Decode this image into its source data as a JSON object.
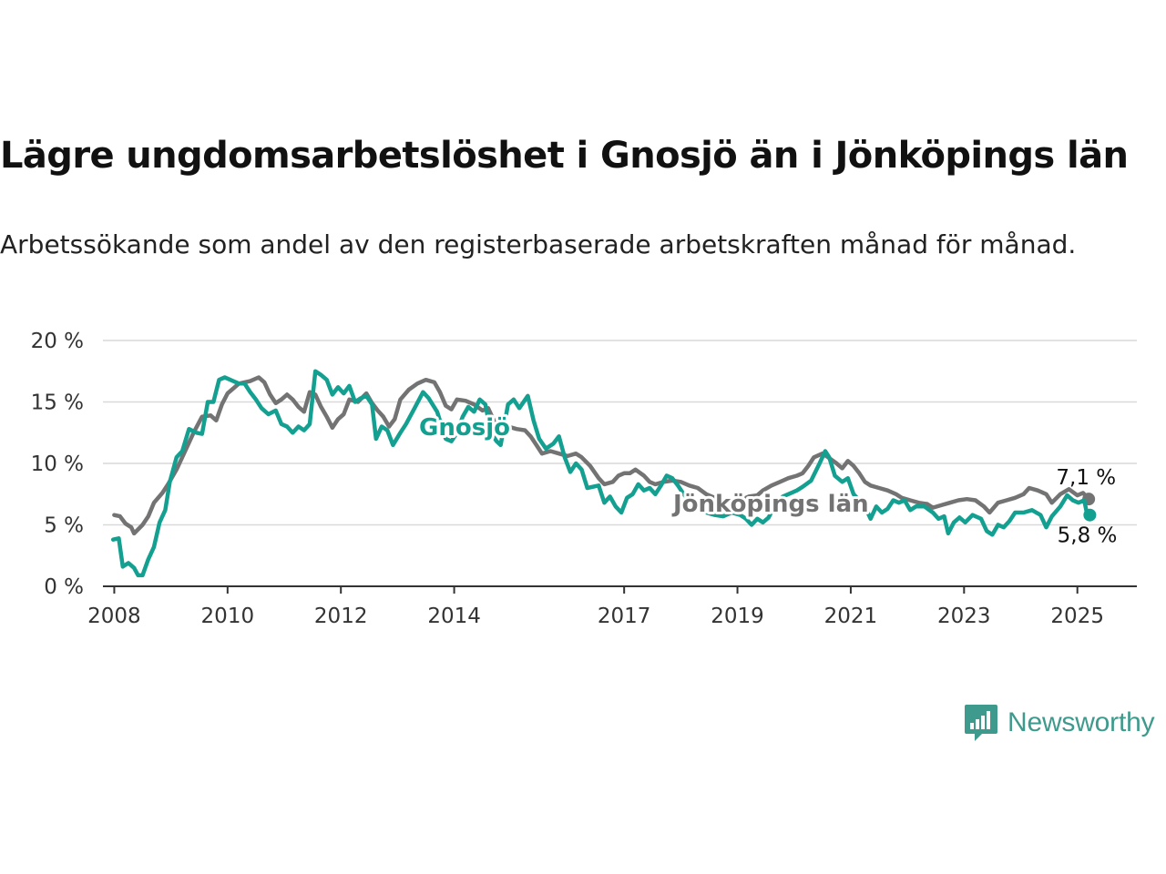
{
  "chart_data": {
    "type": "line",
    "title": "Lägre ungdomsarbetslöshet i Gnosjö än i Jönköpings län",
    "subtitle": "Arbetssökande som andel av den registerbaserade arbetskraften månad för månad.",
    "y_ticks": [
      "0 %",
      "5 %",
      "10 %",
      "15 %",
      "20 %"
    ],
    "ylim": [
      0,
      20
    ],
    "x_tick_labels": [
      "2008",
      "2010",
      "2012",
      "2014",
      "2017",
      "2019",
      "2021",
      "2023",
      "2025"
    ],
    "x_tick_years": [
      2008,
      2010,
      2012,
      2014,
      2017,
      2019,
      2021,
      2023,
      2025
    ],
    "xlim": [
      2007.8,
      2026.05
    ],
    "grid": true,
    "legend": "direct labels on lines",
    "series": [
      {
        "name": "Jönköpings län",
        "color": "#737373",
        "end_label": "7,1 %",
        "points": [
          [
            2008.0,
            5.8
          ],
          [
            2008.1,
            5.7
          ],
          [
            2008.2,
            5.1
          ],
          [
            2008.3,
            4.8
          ],
          [
            2008.35,
            4.3
          ],
          [
            2008.5,
            5.0
          ],
          [
            2008.6,
            5.7
          ],
          [
            2008.7,
            6.8
          ],
          [
            2008.85,
            7.6
          ],
          [
            2008.95,
            8.3
          ],
          [
            2009.1,
            9.5
          ],
          [
            2009.3,
            11.5
          ],
          [
            2009.4,
            12.5
          ],
          [
            2009.55,
            13.8
          ],
          [
            2009.7,
            13.9
          ],
          [
            2009.8,
            13.5
          ],
          [
            2009.9,
            14.8
          ],
          [
            2010.0,
            15.7
          ],
          [
            2010.2,
            16.5
          ],
          [
            2010.4,
            16.7
          ],
          [
            2010.55,
            17.0
          ],
          [
            2010.65,
            16.6
          ],
          [
            2010.75,
            15.6
          ],
          [
            2010.85,
            14.9
          ],
          [
            2010.95,
            15.2
          ],
          [
            2011.05,
            15.6
          ],
          [
            2011.15,
            15.2
          ],
          [
            2011.25,
            14.6
          ],
          [
            2011.35,
            14.2
          ],
          [
            2011.45,
            15.8
          ],
          [
            2011.55,
            15.6
          ],
          [
            2011.65,
            14.6
          ],
          [
            2011.75,
            13.8
          ],
          [
            2011.85,
            12.9
          ],
          [
            2011.95,
            13.6
          ],
          [
            2012.05,
            14.0
          ],
          [
            2012.15,
            15.2
          ],
          [
            2012.3,
            15.0
          ],
          [
            2012.45,
            15.7
          ],
          [
            2012.55,
            14.9
          ],
          [
            2012.65,
            14.3
          ],
          [
            2012.75,
            13.8
          ],
          [
            2012.85,
            13.0
          ],
          [
            2012.95,
            13.6
          ],
          [
            2013.05,
            15.2
          ],
          [
            2013.2,
            16.0
          ],
          [
            2013.35,
            16.5
          ],
          [
            2013.5,
            16.8
          ],
          [
            2013.65,
            16.6
          ],
          [
            2013.75,
            15.8
          ],
          [
            2013.85,
            14.7
          ],
          [
            2013.95,
            14.4
          ],
          [
            2014.05,
            15.2
          ],
          [
            2014.2,
            15.1
          ],
          [
            2014.35,
            14.8
          ],
          [
            2014.5,
            14.3
          ],
          [
            2014.6,
            14.5
          ],
          [
            2014.7,
            13.5
          ],
          [
            2014.8,
            13.0
          ],
          [
            2014.95,
            13.0
          ],
          [
            2015.1,
            12.8
          ],
          [
            2015.25,
            12.7
          ],
          [
            2015.35,
            12.2
          ],
          [
            2015.45,
            11.5
          ],
          [
            2015.55,
            10.8
          ],
          [
            2015.7,
            11.0
          ],
          [
            2015.85,
            10.8
          ],
          [
            2016.0,
            10.6
          ],
          [
            2016.15,
            10.8
          ],
          [
            2016.25,
            10.5
          ],
          [
            2016.4,
            9.8
          ],
          [
            2016.55,
            8.8
          ],
          [
            2016.65,
            8.3
          ],
          [
            2016.8,
            8.5
          ],
          [
            2016.9,
            9.0
          ],
          [
            2017.0,
            9.2
          ],
          [
            2017.1,
            9.2
          ],
          [
            2017.2,
            9.5
          ],
          [
            2017.35,
            9.0
          ],
          [
            2017.45,
            8.5
          ],
          [
            2017.55,
            8.3
          ],
          [
            2017.7,
            8.5
          ],
          [
            2017.85,
            8.6
          ],
          [
            2018.0,
            8.5
          ],
          [
            2018.15,
            8.2
          ],
          [
            2018.3,
            8.0
          ],
          [
            2018.45,
            7.5
          ],
          [
            2018.6,
            7.2
          ],
          [
            2018.75,
            7.0
          ],
          [
            2018.9,
            6.9
          ],
          [
            2019.05,
            7.0
          ],
          [
            2019.2,
            7.3
          ],
          [
            2019.35,
            7.4
          ],
          [
            2019.45,
            7.8
          ],
          [
            2019.6,
            8.2
          ],
          [
            2019.75,
            8.5
          ],
          [
            2019.9,
            8.8
          ],
          [
            2020.05,
            9.0
          ],
          [
            2020.15,
            9.2
          ],
          [
            2020.25,
            9.8
          ],
          [
            2020.35,
            10.5
          ],
          [
            2020.5,
            10.8
          ],
          [
            2020.6,
            10.5
          ],
          [
            2020.75,
            10.0
          ],
          [
            2020.85,
            9.6
          ],
          [
            2020.95,
            10.2
          ],
          [
            2021.05,
            9.8
          ],
          [
            2021.15,
            9.2
          ],
          [
            2021.25,
            8.5
          ],
          [
            2021.35,
            8.2
          ],
          [
            2021.5,
            8.0
          ],
          [
            2021.65,
            7.8
          ],
          [
            2021.8,
            7.5
          ],
          [
            2021.9,
            7.2
          ],
          [
            2022.05,
            7.0
          ],
          [
            2022.2,
            6.8
          ],
          [
            2022.35,
            6.7
          ],
          [
            2022.45,
            6.4
          ],
          [
            2022.6,
            6.6
          ],
          [
            2022.75,
            6.8
          ],
          [
            2022.9,
            7.0
          ],
          [
            2023.05,
            7.1
          ],
          [
            2023.2,
            7.0
          ],
          [
            2023.35,
            6.5
          ],
          [
            2023.45,
            6.0
          ],
          [
            2023.6,
            6.8
          ],
          [
            2023.75,
            7.0
          ],
          [
            2023.9,
            7.2
          ],
          [
            2024.05,
            7.5
          ],
          [
            2024.15,
            8.0
          ],
          [
            2024.3,
            7.8
          ],
          [
            2024.45,
            7.5
          ],
          [
            2024.55,
            6.8
          ],
          [
            2024.7,
            7.5
          ],
          [
            2024.85,
            7.9
          ],
          [
            2025.0,
            7.4
          ],
          [
            2025.1,
            7.6
          ],
          [
            2025.2,
            7.1
          ]
        ]
      },
      {
        "name": "Gnosjö",
        "color": "#14a091",
        "end_label": "5,8 %",
        "points": [
          [
            2007.98,
            3.8
          ],
          [
            2008.08,
            3.9
          ],
          [
            2008.15,
            1.6
          ],
          [
            2008.25,
            1.9
          ],
          [
            2008.35,
            1.5
          ],
          [
            2008.42,
            0.9
          ],
          [
            2008.5,
            0.9
          ],
          [
            2008.6,
            2.2
          ],
          [
            2008.7,
            3.2
          ],
          [
            2008.8,
            5.2
          ],
          [
            2008.9,
            6.2
          ],
          [
            2008.98,
            8.5
          ],
          [
            2009.1,
            10.5
          ],
          [
            2009.2,
            11.0
          ],
          [
            2009.32,
            12.8
          ],
          [
            2009.45,
            12.5
          ],
          [
            2009.55,
            12.4
          ],
          [
            2009.65,
            15.0
          ],
          [
            2009.75,
            15.0
          ],
          [
            2009.85,
            16.8
          ],
          [
            2009.95,
            17.0
          ],
          [
            2010.05,
            16.8
          ],
          [
            2010.2,
            16.5
          ],
          [
            2010.3,
            16.5
          ],
          [
            2010.4,
            15.8
          ],
          [
            2010.5,
            15.2
          ],
          [
            2010.6,
            14.5
          ],
          [
            2010.72,
            14.0
          ],
          [
            2010.85,
            14.3
          ],
          [
            2010.95,
            13.2
          ],
          [
            2011.05,
            13.0
          ],
          [
            2011.15,
            12.5
          ],
          [
            2011.25,
            13.0
          ],
          [
            2011.35,
            12.7
          ],
          [
            2011.45,
            13.2
          ],
          [
            2011.55,
            17.5
          ],
          [
            2011.65,
            17.2
          ],
          [
            2011.75,
            16.8
          ],
          [
            2011.85,
            15.6
          ],
          [
            2011.95,
            16.2
          ],
          [
            2012.05,
            15.7
          ],
          [
            2012.15,
            16.3
          ],
          [
            2012.25,
            15.0
          ],
          [
            2012.35,
            15.3
          ],
          [
            2012.45,
            15.5
          ],
          [
            2012.55,
            14.8
          ],
          [
            2012.62,
            12.0
          ],
          [
            2012.72,
            13.0
          ],
          [
            2012.82,
            12.7
          ],
          [
            2012.92,
            11.5
          ],
          [
            2013.05,
            12.5
          ],
          [
            2013.15,
            13.2
          ],
          [
            2013.3,
            14.5
          ],
          [
            2013.45,
            15.8
          ],
          [
            2013.55,
            15.3
          ],
          [
            2013.7,
            14.2
          ],
          [
            2013.85,
            12.0
          ],
          [
            2013.95,
            11.8
          ],
          [
            2014.05,
            12.5
          ],
          [
            2014.15,
            13.8
          ],
          [
            2014.25,
            14.6
          ],
          [
            2014.35,
            14.2
          ],
          [
            2014.45,
            15.2
          ],
          [
            2014.55,
            14.8
          ],
          [
            2014.65,
            12.5
          ],
          [
            2014.75,
            11.8
          ],
          [
            2014.82,
            11.5
          ],
          [
            2014.95,
            14.8
          ],
          [
            2015.05,
            15.2
          ],
          [
            2015.15,
            14.5
          ],
          [
            2015.3,
            15.5
          ],
          [
            2015.4,
            13.5
          ],
          [
            2015.5,
            12.0
          ],
          [
            2015.62,
            11.2
          ],
          [
            2015.75,
            11.6
          ],
          [
            2015.85,
            12.2
          ],
          [
            2015.95,
            10.5
          ],
          [
            2016.05,
            9.3
          ],
          [
            2016.15,
            10.0
          ],
          [
            2016.25,
            9.5
          ],
          [
            2016.35,
            8.0
          ],
          [
            2016.55,
            8.2
          ],
          [
            2016.65,
            6.8
          ],
          [
            2016.75,
            7.3
          ],
          [
            2016.85,
            6.5
          ],
          [
            2016.95,
            6.0
          ],
          [
            2017.05,
            7.2
          ],
          [
            2017.15,
            7.5
          ],
          [
            2017.25,
            8.3
          ],
          [
            2017.35,
            7.8
          ],
          [
            2017.45,
            8.0
          ],
          [
            2017.55,
            7.5
          ],
          [
            2017.65,
            8.2
          ],
          [
            2017.75,
            9.0
          ],
          [
            2017.85,
            8.8
          ],
          [
            2017.95,
            8.2
          ],
          [
            2018.05,
            7.5
          ],
          [
            2018.15,
            7.0
          ],
          [
            2018.3,
            6.3
          ],
          [
            2018.45,
            6.0
          ],
          [
            2018.6,
            5.8
          ],
          [
            2018.75,
            5.7
          ],
          [
            2018.9,
            6.0
          ],
          [
            2019.05,
            5.8
          ],
          [
            2019.15,
            5.5
          ],
          [
            2019.25,
            5.0
          ],
          [
            2019.35,
            5.5
          ],
          [
            2019.45,
            5.2
          ],
          [
            2019.55,
            5.6
          ],
          [
            2019.65,
            6.5
          ],
          [
            2019.8,
            7.3
          ],
          [
            2019.95,
            7.6
          ],
          [
            2020.05,
            7.8
          ],
          [
            2020.15,
            8.1
          ],
          [
            2020.3,
            8.6
          ],
          [
            2020.45,
            10.0
          ],
          [
            2020.55,
            11.0
          ],
          [
            2020.62,
            10.5
          ],
          [
            2020.72,
            9.0
          ],
          [
            2020.85,
            8.5
          ],
          [
            2020.95,
            8.8
          ],
          [
            2021.05,
            7.5
          ],
          [
            2021.15,
            7.0
          ],
          [
            2021.25,
            6.5
          ],
          [
            2021.35,
            5.5
          ],
          [
            2021.45,
            6.5
          ],
          [
            2021.55,
            6.0
          ],
          [
            2021.65,
            6.3
          ],
          [
            2021.75,
            7.0
          ],
          [
            2021.85,
            6.8
          ],
          [
            2021.95,
            7.0
          ],
          [
            2022.05,
            6.2
          ],
          [
            2022.15,
            6.5
          ],
          [
            2022.3,
            6.5
          ],
          [
            2022.45,
            6.0
          ],
          [
            2022.55,
            5.5
          ],
          [
            2022.65,
            5.7
          ],
          [
            2022.72,
            4.3
          ],
          [
            2022.82,
            5.2
          ],
          [
            2022.92,
            5.6
          ],
          [
            2023.02,
            5.2
          ],
          [
            2023.15,
            5.8
          ],
          [
            2023.3,
            5.5
          ],
          [
            2023.4,
            4.5
          ],
          [
            2023.5,
            4.2
          ],
          [
            2023.6,
            5.0
          ],
          [
            2023.7,
            4.8
          ],
          [
            2023.8,
            5.3
          ],
          [
            2023.9,
            6.0
          ],
          [
            2024.05,
            6.0
          ],
          [
            2024.2,
            6.2
          ],
          [
            2024.35,
            5.8
          ],
          [
            2024.45,
            4.8
          ],
          [
            2024.55,
            5.7
          ],
          [
            2024.7,
            6.5
          ],
          [
            2024.82,
            7.4
          ],
          [
            2024.92,
            7.0
          ],
          [
            2025.02,
            6.8
          ],
          [
            2025.12,
            7.0
          ],
          [
            2025.17,
            5.9
          ],
          [
            2025.22,
            5.8
          ]
        ]
      }
    ]
  },
  "brand": {
    "name": "Newsworthy",
    "color": "#3e9a8c"
  }
}
